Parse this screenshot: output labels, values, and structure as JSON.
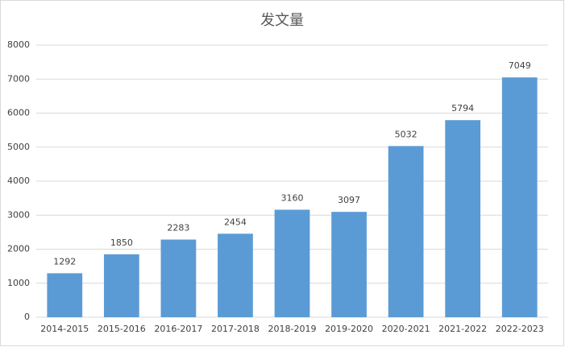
{
  "chart_data": {
    "type": "bar",
    "title": "发文量",
    "categories": [
      "2014-2015",
      "2015-2016",
      "2016-2017",
      "2017-2018",
      "2018-2019",
      "2019-2020",
      "2020-2021",
      "2021-2022",
      "2022-2023"
    ],
    "values": [
      1292,
      1850,
      2283,
      2454,
      3160,
      3097,
      5032,
      5794,
      7049
    ],
    "color": "#5b9bd5",
    "ylim": [
      0,
      8000
    ],
    "yticks": [
      0,
      1000,
      2000,
      3000,
      4000,
      5000,
      6000,
      7000,
      8000
    ],
    "grid": true
  }
}
